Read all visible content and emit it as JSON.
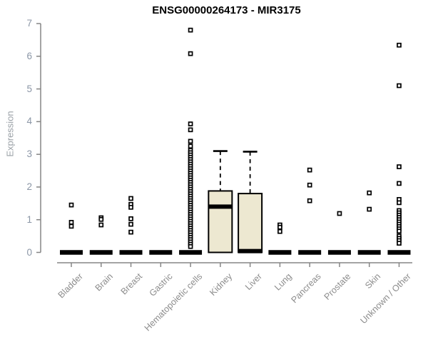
{
  "page": {
    "background": "#ffffff"
  },
  "chart_data": {
    "type": "boxplot",
    "title": "ENSG00000264173 - MIR3175",
    "ylabel": "Expression",
    "ylim": [
      0,
      7
    ],
    "yticks": [
      0,
      1,
      2,
      3,
      4,
      5,
      6,
      7
    ],
    "grid": false,
    "legend": "none",
    "colors": {
      "box_fill": "#ede8d1",
      "box_stroke": "#000000",
      "median": "#000000",
      "outlier_stroke": "#000000",
      "outlier_fill": "#ffffff",
      "axis": "#858585",
      "y_tick_label": "#8b96a6",
      "x_tick_label": "#8c8c8c",
      "ylabel_color": "#9aa0a6",
      "title_color": "#000000"
    },
    "categories": [
      "Bladder",
      "Brain",
      "Breast",
      "Gastric",
      "Hematopoietic cells",
      "Kidney",
      "Liver",
      "Lung",
      "Pancreas",
      "Prostate",
      "Skin",
      "Unknown / Other"
    ],
    "boxes": [
      {
        "category": "Bladder",
        "q1": 0,
        "median": 0,
        "q3": 0,
        "whisker_low": 0,
        "whisker_high": 0,
        "outliers": [
          1.45,
          0.92,
          0.8
        ]
      },
      {
        "category": "Brain",
        "q1": 0,
        "median": 0,
        "q3": 0,
        "whisker_low": 0,
        "whisker_high": 0,
        "outliers": [
          1.06,
          1.01,
          0.84
        ]
      },
      {
        "category": "Breast",
        "q1": 0,
        "median": 0,
        "q3": 0,
        "whisker_low": 0,
        "whisker_high": 0,
        "outliers": [
          1.65,
          1.47,
          1.38,
          1.03,
          0.86,
          0.62
        ]
      },
      {
        "category": "Gastric",
        "q1": 0,
        "median": 0,
        "q3": 0,
        "whisker_low": 0,
        "whisker_high": 0,
        "outliers": []
      },
      {
        "category": "Hematopoietic cells",
        "q1": 0,
        "median": 0,
        "q3": 0,
        "whisker_low": 0,
        "whisker_high": 0,
        "outliers": [
          6.8,
          6.08,
          3.93,
          3.75,
          3.4,
          3.25,
          3.12,
          3.05,
          2.98,
          2.91,
          2.84,
          2.77,
          2.7,
          2.63,
          2.56,
          2.49,
          2.42,
          2.35,
          2.28,
          2.21,
          2.14,
          2.07,
          2.0,
          1.93,
          1.86,
          1.79,
          1.72,
          1.65,
          1.58,
          1.51,
          1.44,
          1.37,
          1.3,
          1.23,
          1.16,
          1.09,
          1.02,
          0.95,
          0.88,
          0.81,
          0.74,
          0.67,
          0.6,
          0.53,
          0.46,
          0.39,
          0.32,
          0.25,
          0.18
        ]
      },
      {
        "category": "Kidney",
        "q1": 0,
        "median": 1.4,
        "q3": 1.88,
        "whisker_low": 0,
        "whisker_high": 3.1,
        "outliers": []
      },
      {
        "category": "Liver",
        "q1": 0,
        "median": 0.04,
        "q3": 1.8,
        "whisker_low": 0,
        "whisker_high": 3.08,
        "outliers": []
      },
      {
        "category": "Lung",
        "q1": 0,
        "median": 0,
        "q3": 0,
        "whisker_low": 0,
        "whisker_high": 0,
        "outliers": [
          0.84,
          0.77,
          0.64
        ]
      },
      {
        "category": "Pancreas",
        "q1": 0,
        "median": 0,
        "q3": 0,
        "whisker_low": 0,
        "whisker_high": 0,
        "outliers": [
          2.52,
          2.06,
          1.58
        ]
      },
      {
        "category": "Prostate",
        "q1": 0,
        "median": 0,
        "q3": 0,
        "whisker_low": 0,
        "whisker_high": 0,
        "outliers": [
          1.19
        ]
      },
      {
        "category": "Skin",
        "q1": 0,
        "median": 0,
        "q3": 0,
        "whisker_low": 0,
        "whisker_high": 0,
        "outliers": [
          1.82,
          1.32
        ]
      },
      {
        "category": "Unknown / Other",
        "q1": 0,
        "median": 0,
        "q3": 0,
        "whisker_low": 0,
        "whisker_high": 0,
        "outliers": [
          6.34,
          5.1,
          2.62,
          2.11,
          1.62,
          1.52,
          1.28,
          1.21,
          1.14,
          1.07,
          1.0,
          0.93,
          0.86,
          0.79,
          0.72,
          0.65,
          0.5,
          0.43,
          0.36,
          0.28
        ]
      }
    ]
  }
}
